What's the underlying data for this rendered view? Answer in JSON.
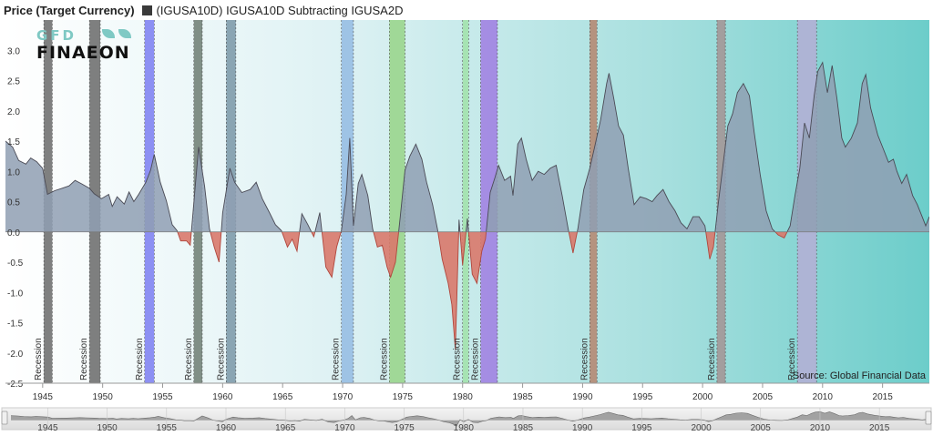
{
  "legend": {
    "title": "Price (Target Currency)",
    "series_label": "(IGUSA10D) IGUSA10D Subtracting IGUSA2D",
    "swatch_color": "#3a3a3a"
  },
  "logo": {
    "line1": "GFD",
    "line2": "FINAEON"
  },
  "source": "Source: Global Financial Data",
  "chart_data": {
    "type": "area",
    "title": "",
    "xlabel": "",
    "ylabel": "",
    "xlim": [
      1941.9,
      2018.9
    ],
    "ylim": [
      -2.5,
      3.5
    ],
    "y_ticks": [
      "-2.5",
      "-2.0",
      "-1.5",
      "-1.0",
      "-0.5",
      "0.0",
      "0.5",
      "1.0",
      "1.5",
      "2.0",
      "2.5",
      "3.0"
    ],
    "x_ticks": [
      "1945",
      "1950",
      "1955",
      "1960",
      "1965",
      "1970",
      "1975",
      "1980",
      "1985",
      "1990",
      "1995",
      "2000",
      "2005",
      "2010",
      "2015"
    ],
    "grid": false,
    "positive_color": "#8f9fb3",
    "negative_color": "#d9796c",
    "recession_label": "Recession",
    "recessions": [
      {
        "start": 1945.1,
        "end": 1945.8,
        "color": "#555555"
      },
      {
        "start": 1948.9,
        "end": 1949.8,
        "color": "#555555"
      },
      {
        "start": 1953.5,
        "end": 1954.3,
        "color": "#6b6cf0"
      },
      {
        "start": 1957.6,
        "end": 1958.3,
        "color": "#5c6c60"
      },
      {
        "start": 1960.3,
        "end": 1961.1,
        "color": "#6a8a9c"
      },
      {
        "start": 1969.9,
        "end": 1970.9,
        "color": "#8ab3e0"
      },
      {
        "start": 1973.9,
        "end": 1975.2,
        "color": "#8fd07a"
      },
      {
        "start": 1980.0,
        "end": 1980.5,
        "color": "#9be0a0"
      },
      {
        "start": 1981.5,
        "end": 1982.9,
        "color": "#9a6ee0"
      },
      {
        "start": 1990.6,
        "end": 1991.2,
        "color": "#b5785e"
      },
      {
        "start": 2001.2,
        "end": 2001.9,
        "color": "#a58a8a"
      },
      {
        "start": 2007.9,
        "end": 2009.5,
        "color": "#bba8d6"
      }
    ],
    "series": [
      {
        "points": [
          [
            1941.9,
            1.5
          ],
          [
            1942.5,
            1.4
          ],
          [
            1943.0,
            1.18
          ],
          [
            1943.6,
            1.12
          ],
          [
            1944.0,
            1.22
          ],
          [
            1944.5,
            1.16
          ],
          [
            1945.0,
            1.05
          ],
          [
            1945.4,
            0.62
          ],
          [
            1946.0,
            0.68
          ],
          [
            1946.6,
            0.72
          ],
          [
            1947.2,
            0.76
          ],
          [
            1947.7,
            0.85
          ],
          [
            1948.2,
            0.8
          ],
          [
            1948.9,
            0.72
          ],
          [
            1949.3,
            0.63
          ],
          [
            1949.9,
            0.55
          ],
          [
            1950.5,
            0.62
          ],
          [
            1950.8,
            0.42
          ],
          [
            1951.2,
            0.58
          ],
          [
            1951.8,
            0.46
          ],
          [
            1952.2,
            0.66
          ],
          [
            1952.6,
            0.5
          ],
          [
            1953.0,
            0.62
          ],
          [
            1953.6,
            0.82
          ],
          [
            1954.0,
            1.02
          ],
          [
            1954.3,
            1.28
          ],
          [
            1954.8,
            0.82
          ],
          [
            1955.3,
            0.52
          ],
          [
            1955.8,
            0.12
          ],
          [
            1956.2,
            0.02
          ],
          [
            1956.5,
            -0.15
          ],
          [
            1957.0,
            -0.15
          ],
          [
            1957.3,
            -0.22
          ],
          [
            1957.7,
            0.72
          ],
          [
            1958.0,
            1.4
          ],
          [
            1958.5,
            0.75
          ],
          [
            1958.9,
            0.05
          ],
          [
            1959.3,
            -0.25
          ],
          [
            1959.7,
            -0.5
          ],
          [
            1960.0,
            0.32
          ],
          [
            1960.6,
            1.05
          ],
          [
            1961.0,
            0.82
          ],
          [
            1961.6,
            0.65
          ],
          [
            1962.3,
            0.7
          ],
          [
            1962.8,
            0.82
          ],
          [
            1963.3,
            0.55
          ],
          [
            1963.9,
            0.32
          ],
          [
            1964.4,
            0.12
          ],
          [
            1964.9,
            0.02
          ],
          [
            1965.4,
            -0.25
          ],
          [
            1965.8,
            -0.12
          ],
          [
            1966.2,
            -0.32
          ],
          [
            1966.6,
            0.3
          ],
          [
            1967.1,
            0.12
          ],
          [
            1967.6,
            -0.08
          ],
          [
            1968.1,
            0.32
          ],
          [
            1968.6,
            -0.58
          ],
          [
            1969.1,
            -0.75
          ],
          [
            1969.5,
            -0.25
          ],
          [
            1969.9,
            0.02
          ],
          [
            1970.3,
            0.62
          ],
          [
            1970.6,
            1.55
          ],
          [
            1970.9,
            0.1
          ],
          [
            1971.3,
            0.8
          ],
          [
            1971.6,
            0.95
          ],
          [
            1972.1,
            0.6
          ],
          [
            1972.5,
            0.05
          ],
          [
            1972.9,
            -0.25
          ],
          [
            1973.3,
            -0.22
          ],
          [
            1973.7,
            -0.58
          ],
          [
            1974.0,
            -0.75
          ],
          [
            1974.4,
            -0.5
          ],
          [
            1974.8,
            0.25
          ],
          [
            1975.2,
            1.02
          ],
          [
            1975.6,
            1.25
          ],
          [
            1976.1,
            1.45
          ],
          [
            1976.6,
            1.2
          ],
          [
            1977.0,
            0.82
          ],
          [
            1977.5,
            0.45
          ],
          [
            1977.9,
            0.05
          ],
          [
            1978.3,
            -0.45
          ],
          [
            1978.8,
            -0.85
          ],
          [
            1979.1,
            -1.2
          ],
          [
            1979.4,
            -1.95
          ],
          [
            1979.7,
            0.2
          ],
          [
            1980.0,
            -0.55
          ],
          [
            1980.4,
            0.22
          ],
          [
            1980.8,
            -0.7
          ],
          [
            1981.2,
            -0.85
          ],
          [
            1981.6,
            -0.32
          ],
          [
            1981.9,
            -0.12
          ],
          [
            1982.3,
            0.65
          ],
          [
            1982.7,
            0.9
          ],
          [
            1983.0,
            1.1
          ],
          [
            1983.5,
            0.85
          ],
          [
            1984.0,
            0.92
          ],
          [
            1984.2,
            0.6
          ],
          [
            1984.6,
            1.45
          ],
          [
            1984.9,
            1.55
          ],
          [
            1985.3,
            1.2
          ],
          [
            1985.8,
            0.85
          ],
          [
            1986.3,
            1.0
          ],
          [
            1986.8,
            0.95
          ],
          [
            1987.3,
            1.05
          ],
          [
            1987.8,
            1.1
          ],
          [
            1988.3,
            0.6
          ],
          [
            1988.8,
            0.05
          ],
          [
            1989.2,
            -0.35
          ],
          [
            1989.6,
            0.05
          ],
          [
            1990.1,
            0.7
          ],
          [
            1990.6,
            1.05
          ],
          [
            1991.0,
            1.4
          ],
          [
            1991.5,
            1.85
          ],
          [
            1992.0,
            2.45
          ],
          [
            1992.2,
            2.62
          ],
          [
            1992.6,
            2.2
          ],
          [
            1993.0,
            1.75
          ],
          [
            1993.4,
            1.6
          ],
          [
            1993.8,
            1.05
          ],
          [
            1994.3,
            0.45
          ],
          [
            1994.8,
            0.58
          ],
          [
            1995.3,
            0.55
          ],
          [
            1995.8,
            0.5
          ],
          [
            1996.2,
            0.6
          ],
          [
            1996.7,
            0.7
          ],
          [
            1997.2,
            0.5
          ],
          [
            1997.7,
            0.35
          ],
          [
            1998.2,
            0.15
          ],
          [
            1998.7,
            0.05
          ],
          [
            1999.2,
            0.25
          ],
          [
            1999.7,
            0.25
          ],
          [
            2000.2,
            0.1
          ],
          [
            2000.6,
            -0.45
          ],
          [
            2000.9,
            -0.25
          ],
          [
            2001.3,
            0.45
          ],
          [
            2001.7,
            1.1
          ],
          [
            2002.1,
            1.75
          ],
          [
            2002.5,
            1.95
          ],
          [
            2002.9,
            2.3
          ],
          [
            2003.4,
            2.45
          ],
          [
            2003.9,
            2.25
          ],
          [
            2004.3,
            1.65
          ],
          [
            2004.8,
            0.95
          ],
          [
            2005.3,
            0.35
          ],
          [
            2005.8,
            0.05
          ],
          [
            2006.3,
            -0.05
          ],
          [
            2006.8,
            -0.1
          ],
          [
            2007.3,
            0.1
          ],
          [
            2007.7,
            0.6
          ],
          [
            2008.1,
            1.05
          ],
          [
            2008.5,
            1.8
          ],
          [
            2008.9,
            1.55
          ],
          [
            2009.3,
            2.25
          ],
          [
            2009.6,
            2.65
          ],
          [
            2010.0,
            2.8
          ],
          [
            2010.4,
            2.3
          ],
          [
            2010.8,
            2.75
          ],
          [
            2011.2,
            2.2
          ],
          [
            2011.6,
            1.55
          ],
          [
            2011.9,
            1.4
          ],
          [
            2012.4,
            1.55
          ],
          [
            2012.9,
            1.8
          ],
          [
            2013.3,
            2.45
          ],
          [
            2013.6,
            2.6
          ],
          [
            2014.0,
            2.05
          ],
          [
            2014.6,
            1.6
          ],
          [
            2015.1,
            1.35
          ],
          [
            2015.5,
            1.15
          ],
          [
            2015.9,
            1.2
          ],
          [
            2016.2,
            1.0
          ],
          [
            2016.6,
            0.8
          ],
          [
            2017.0,
            0.95
          ],
          [
            2017.5,
            0.6
          ],
          [
            2017.9,
            0.45
          ],
          [
            2018.3,
            0.25
          ],
          [
            2018.6,
            0.1
          ],
          [
            2018.9,
            0.25
          ]
        ]
      }
    ]
  }
}
